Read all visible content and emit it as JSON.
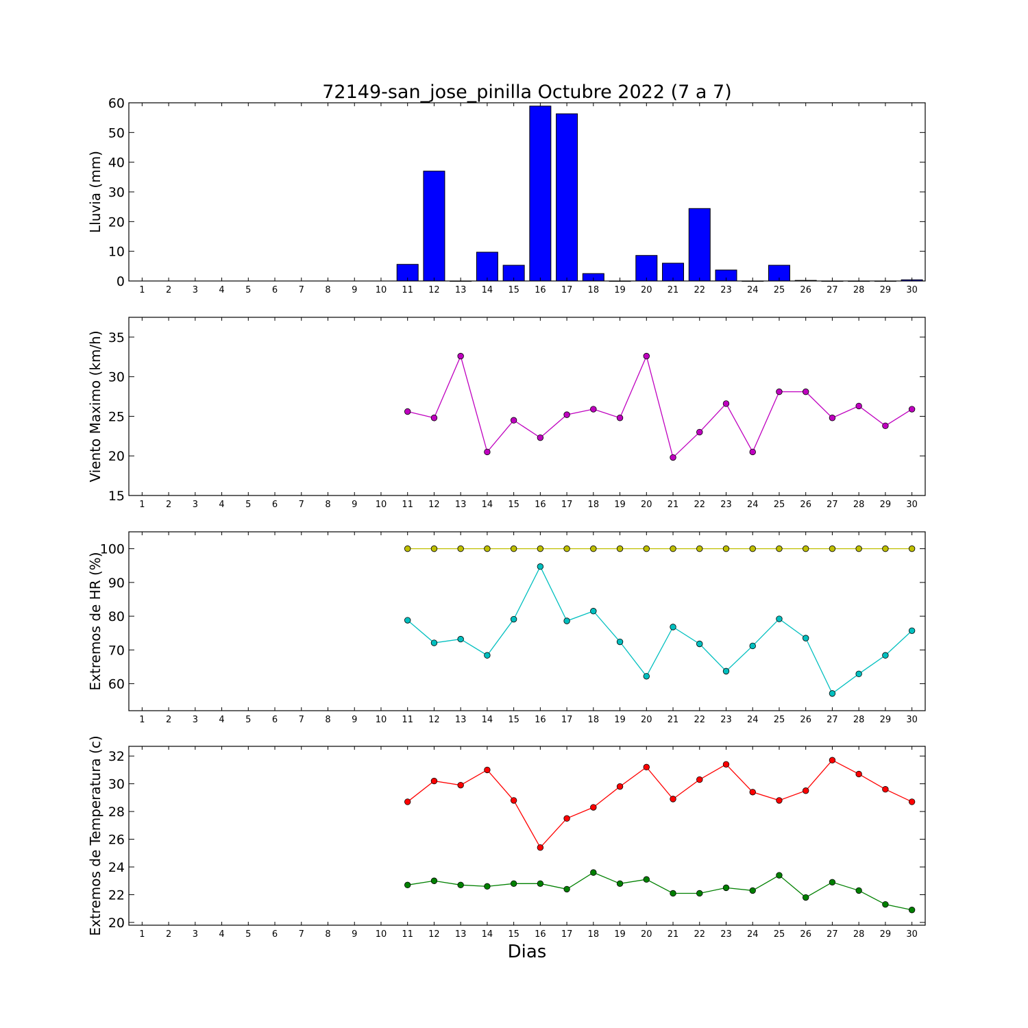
{
  "title": "72149-san_jose_pinilla Octubre 2022  (7 a 7)",
  "xlabel": "Dias",
  "chart_data": [
    {
      "type": "bar",
      "ylabel": "Lluvia (mm)",
      "ylim": [
        0,
        60
      ],
      "yticks": [
        0,
        10,
        20,
        30,
        40,
        50,
        60
      ],
      "xlim": [
        0.5,
        30.5
      ],
      "categories": [
        1,
        2,
        3,
        4,
        5,
        6,
        7,
        8,
        9,
        10,
        11,
        12,
        13,
        14,
        15,
        16,
        17,
        18,
        19,
        20,
        21,
        22,
        23,
        24,
        25,
        26,
        27,
        28,
        29,
        30
      ],
      "series": [
        {
          "color": "#0000ff",
          "values": [
            null,
            null,
            null,
            null,
            null,
            null,
            null,
            null,
            null,
            null,
            5.6,
            37.0,
            0.0,
            9.7,
            5.3,
            58.9,
            56.3,
            2.5,
            0.0,
            8.6,
            6.0,
            24.4,
            3.7,
            0.0,
            5.3,
            0.2,
            0.0,
            0.0,
            0.0,
            0.4
          ]
        }
      ]
    },
    {
      "type": "line",
      "ylabel": "Viento Maximo (km/h)",
      "ylim": [
        15,
        37.5
      ],
      "yticks": [
        15,
        20,
        25,
        30,
        35
      ],
      "xlim": [
        0.5,
        30.5
      ],
      "categories": [
        1,
        2,
        3,
        4,
        5,
        6,
        7,
        8,
        9,
        10,
        11,
        12,
        13,
        14,
        15,
        16,
        17,
        18,
        19,
        20,
        21,
        22,
        23,
        24,
        25,
        26,
        27,
        28,
        29,
        30
      ],
      "series": [
        {
          "color": "#bf00bf",
          "values": [
            null,
            null,
            null,
            null,
            null,
            null,
            null,
            null,
            null,
            null,
            25.6,
            24.8,
            32.6,
            20.5,
            24.5,
            22.3,
            25.2,
            25.9,
            24.8,
            32.6,
            19.8,
            23.0,
            26.6,
            20.5,
            28.1,
            28.1,
            24.8,
            26.3,
            23.8,
            25.9
          ]
        }
      ]
    },
    {
      "type": "line",
      "ylabel": "Extremos de HR (%)",
      "ylim": [
        52,
        105
      ],
      "yticks": [
        60,
        70,
        80,
        90,
        100
      ],
      "xlim": [
        0.5,
        30.5
      ],
      "categories": [
        1,
        2,
        3,
        4,
        5,
        6,
        7,
        8,
        9,
        10,
        11,
        12,
        13,
        14,
        15,
        16,
        17,
        18,
        19,
        20,
        21,
        22,
        23,
        24,
        25,
        26,
        27,
        28,
        29,
        30
      ],
      "series": [
        {
          "color": "#bfbf00",
          "values": [
            null,
            null,
            null,
            null,
            null,
            null,
            null,
            null,
            null,
            null,
            100,
            100,
            100,
            100,
            100,
            100,
            100,
            100,
            100,
            100,
            100,
            100,
            100,
            100,
            100,
            100,
            100,
            100,
            100,
            100
          ]
        },
        {
          "color": "#00bfbf",
          "values": [
            null,
            null,
            null,
            null,
            null,
            null,
            null,
            null,
            null,
            null,
            78.8,
            72.1,
            73.2,
            68.4,
            79.1,
            94.7,
            78.6,
            81.5,
            72.4,
            62.2,
            76.8,
            71.8,
            63.7,
            71.2,
            79.2,
            73.5,
            57.1,
            62.9,
            68.4,
            75.7
          ]
        }
      ]
    },
    {
      "type": "line",
      "ylabel": "Extremos de Temperatura (c)",
      "ylim": [
        19.8,
        32.7
      ],
      "yticks": [
        20,
        22,
        24,
        26,
        28,
        30,
        32
      ],
      "xlim": [
        0.5,
        30.5
      ],
      "categories": [
        1,
        2,
        3,
        4,
        5,
        6,
        7,
        8,
        9,
        10,
        11,
        12,
        13,
        14,
        15,
        16,
        17,
        18,
        19,
        20,
        21,
        22,
        23,
        24,
        25,
        26,
        27,
        28,
        29,
        30
      ],
      "series": [
        {
          "color": "#ff0000",
          "values": [
            null,
            null,
            null,
            null,
            null,
            null,
            null,
            null,
            null,
            null,
            28.7,
            30.2,
            29.9,
            31.0,
            28.8,
            25.4,
            27.5,
            28.3,
            29.8,
            31.2,
            28.9,
            30.3,
            31.4,
            29.4,
            28.8,
            29.5,
            31.7,
            30.7,
            29.6,
            28.7
          ]
        },
        {
          "color": "#008000",
          "values": [
            null,
            null,
            null,
            null,
            null,
            null,
            null,
            null,
            null,
            null,
            22.7,
            23.0,
            22.7,
            22.6,
            22.8,
            22.8,
            22.4,
            23.6,
            22.8,
            23.1,
            22.1,
            22.1,
            22.5,
            22.3,
            23.4,
            21.8,
            22.9,
            22.3,
            21.3,
            20.9
          ]
        }
      ]
    }
  ]
}
